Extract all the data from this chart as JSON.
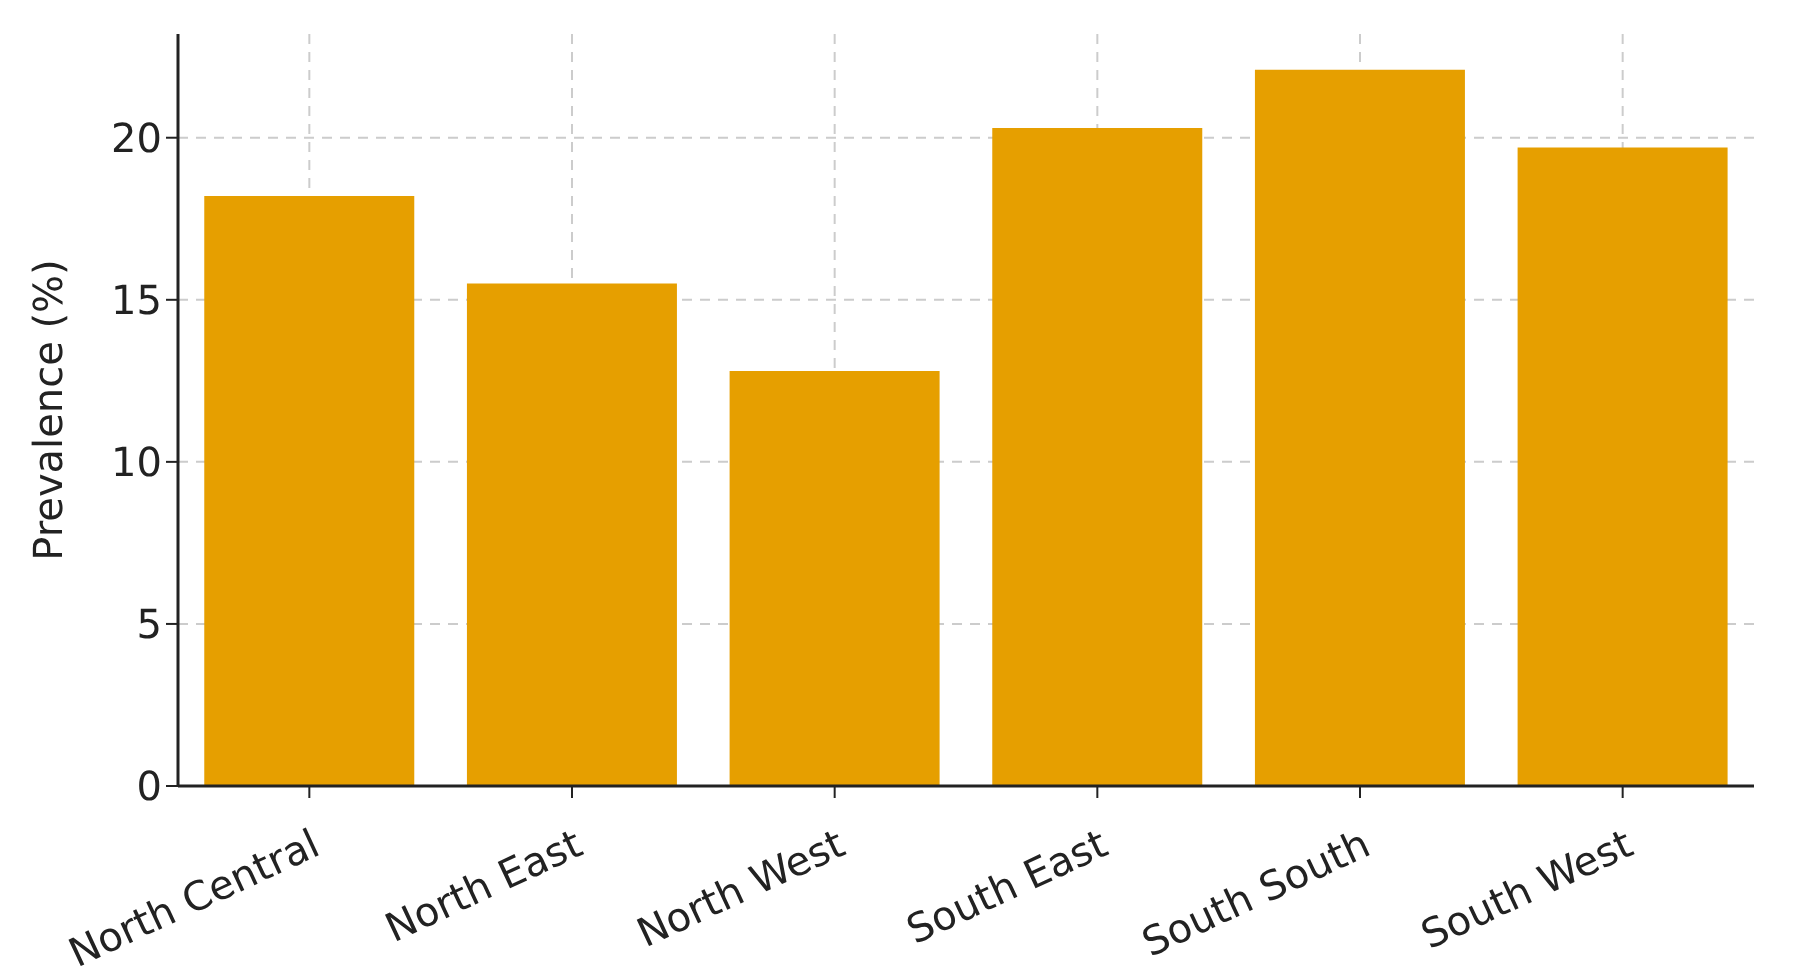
{
  "chart_data": {
    "type": "bar",
    "ylabel": "Prevalence (%)",
    "categories": [
      "North Central",
      "North East",
      "North West",
      "South East",
      "South South",
      "South West"
    ],
    "values": [
      18.2,
      15.5,
      12.8,
      20.3,
      22.1,
      19.7
    ],
    "color": "#e69f00",
    "ylim": [
      0,
      23.2
    ],
    "yticks": [
      0,
      5,
      10,
      15,
      20
    ],
    "grid": true
  }
}
